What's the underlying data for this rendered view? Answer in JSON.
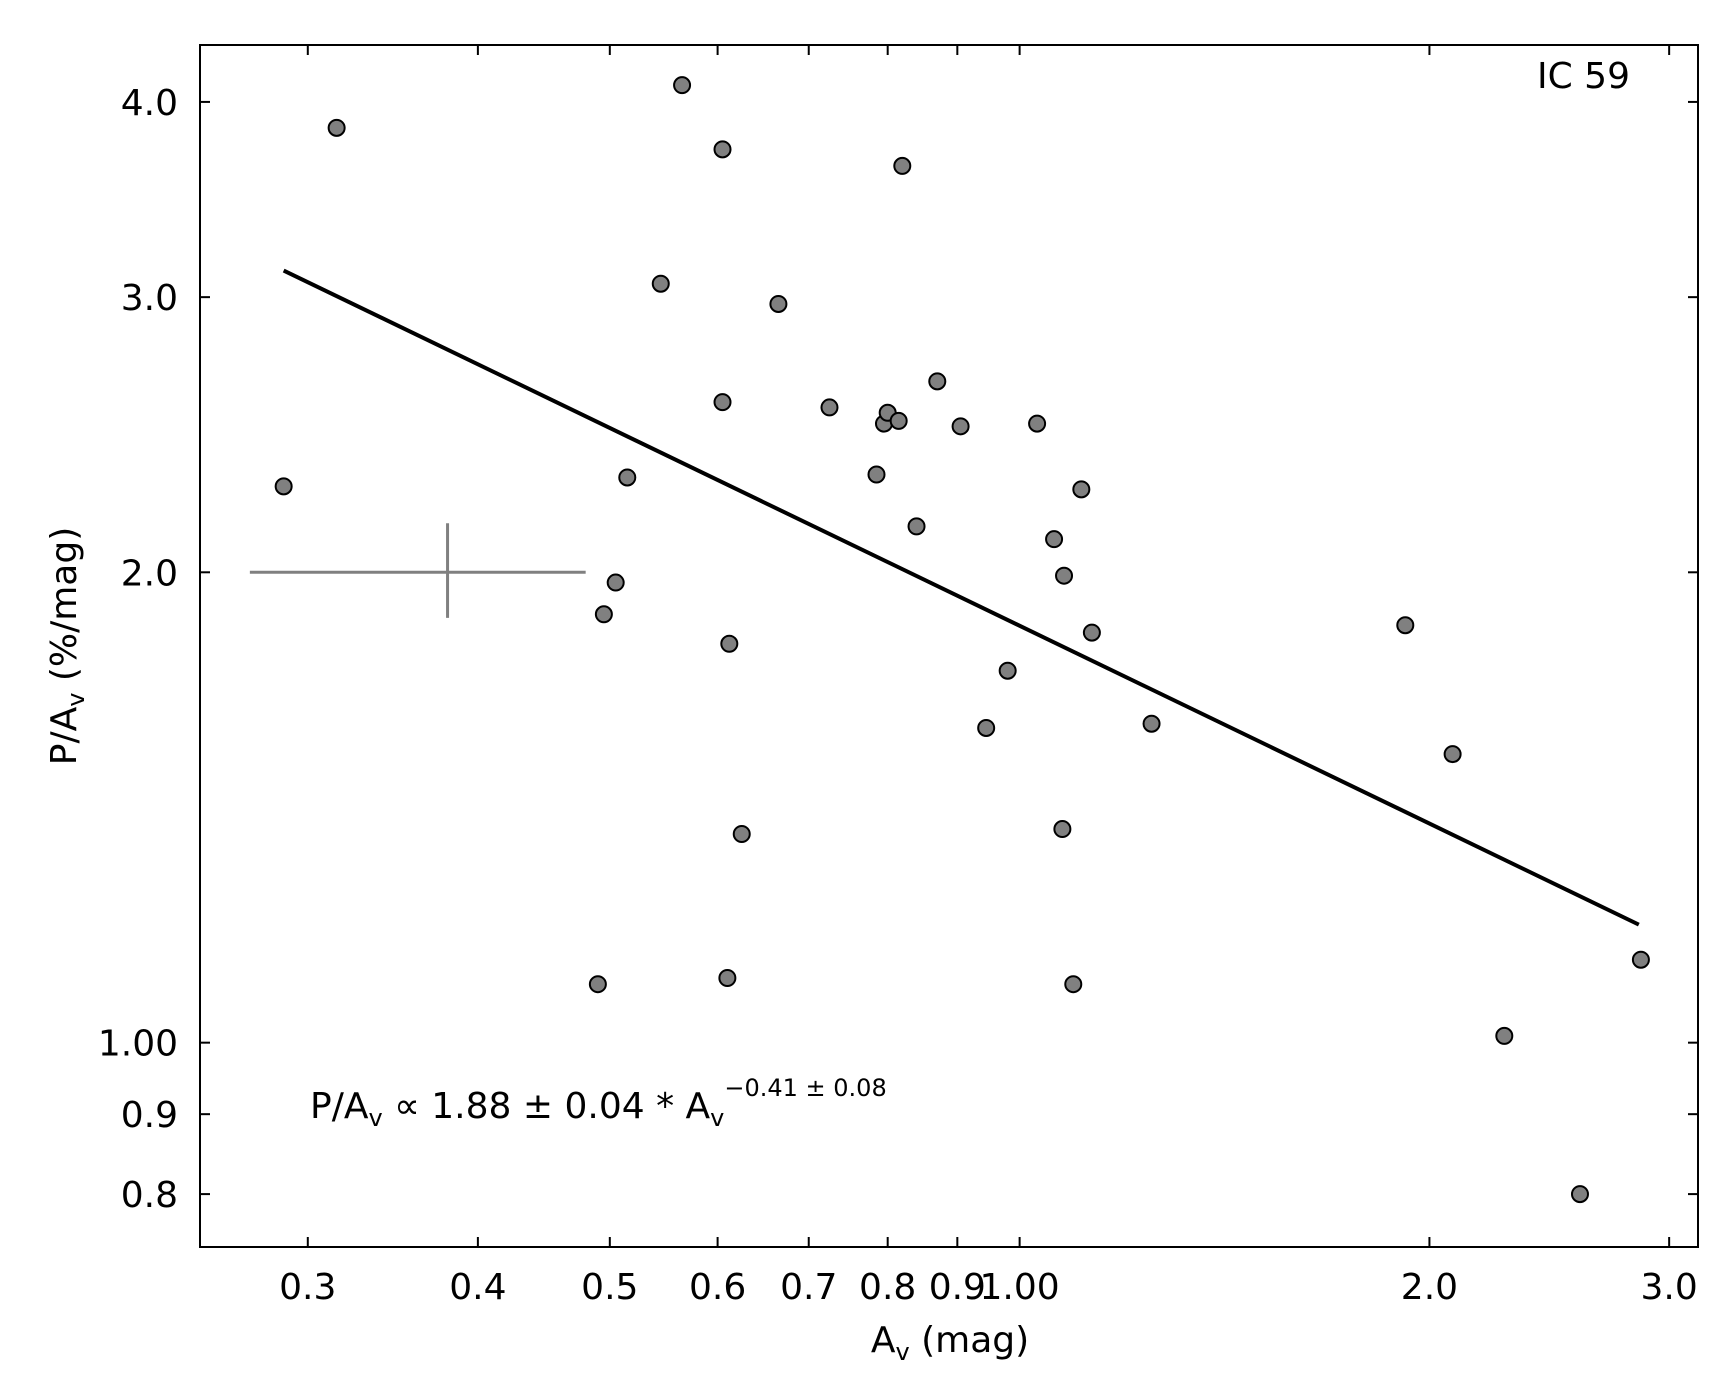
{
  "chart_data": {
    "type": "scatter",
    "panel_label": "IC 59",
    "xlabel": {
      "main": "A",
      "sub": "v",
      "rest": " (mag)"
    },
    "ylabel": {
      "main": "P/A",
      "sub": "v",
      "rest": " (%/mag)"
    },
    "x_scale": "log",
    "y_scale": "log",
    "xlim": [
      0.25,
      3.15
    ],
    "ylim": [
      0.74,
      4.35
    ],
    "x_ticks": [
      {
        "value": 0.3,
        "label": "0.3"
      },
      {
        "value": 0.4,
        "label": "0.4"
      },
      {
        "value": 0.5,
        "label": "0.5"
      },
      {
        "value": 0.6,
        "label": "0.6"
      },
      {
        "value": 0.7,
        "label": "0.7"
      },
      {
        "value": 0.8,
        "label": "0.8"
      },
      {
        "value": 0.9,
        "label": "0.9"
      },
      {
        "value": 1.0,
        "label": "1.00"
      },
      {
        "value": 2.0,
        "label": "2.0"
      },
      {
        "value": 3.0,
        "label": "3.0"
      }
    ],
    "y_ticks": [
      {
        "value": 0.8,
        "label": "0.8"
      },
      {
        "value": 0.9,
        "label": "0.9"
      },
      {
        "value": 1.0,
        "label": "1.00"
      },
      {
        "value": 2.0,
        "label": "2.0"
      },
      {
        "value": 3.0,
        "label": "3.0"
      },
      {
        "value": 4.0,
        "label": "4.0"
      }
    ],
    "points": [
      {
        "x": 0.288,
        "y": 2.27
      },
      {
        "x": 0.315,
        "y": 3.85
      },
      {
        "x": 0.49,
        "y": 1.09
      },
      {
        "x": 0.495,
        "y": 1.88
      },
      {
        "x": 0.505,
        "y": 1.97
      },
      {
        "x": 0.515,
        "y": 2.3
      },
      {
        "x": 0.545,
        "y": 3.06
      },
      {
        "x": 0.565,
        "y": 4.1
      },
      {
        "x": 0.605,
        "y": 3.73
      },
      {
        "x": 0.605,
        "y": 2.57
      },
      {
        "x": 0.61,
        "y": 1.1
      },
      {
        "x": 0.612,
        "y": 1.8
      },
      {
        "x": 0.625,
        "y": 1.36
      },
      {
        "x": 0.665,
        "y": 2.97
      },
      {
        "x": 0.725,
        "y": 2.55
      },
      {
        "x": 0.785,
        "y": 2.31
      },
      {
        "x": 0.795,
        "y": 2.49
      },
      {
        "x": 0.8,
        "y": 2.53
      },
      {
        "x": 0.815,
        "y": 2.5
      },
      {
        "x": 0.82,
        "y": 3.64
      },
      {
        "x": 0.84,
        "y": 2.14
      },
      {
        "x": 0.87,
        "y": 2.65
      },
      {
        "x": 0.905,
        "y": 2.48
      },
      {
        "x": 0.945,
        "y": 1.59
      },
      {
        "x": 0.98,
        "y": 1.73
      },
      {
        "x": 1.03,
        "y": 2.49
      },
      {
        "x": 1.06,
        "y": 2.1
      },
      {
        "x": 1.075,
        "y": 1.37
      },
      {
        "x": 1.078,
        "y": 1.99
      },
      {
        "x": 1.095,
        "y": 1.09
      },
      {
        "x": 1.11,
        "y": 2.26
      },
      {
        "x": 1.13,
        "y": 1.83
      },
      {
        "x": 1.25,
        "y": 1.6
      },
      {
        "x": 1.92,
        "y": 1.85
      },
      {
        "x": 2.08,
        "y": 1.53
      },
      {
        "x": 2.27,
        "y": 1.01
      },
      {
        "x": 2.58,
        "y": 0.8
      },
      {
        "x": 2.86,
        "y": 1.13
      }
    ],
    "fit_line": {
      "x": [
        0.288,
        2.85
      ],
      "y": [
        3.12,
        1.19
      ]
    },
    "error_cross": {
      "x": 0.38,
      "y": 2.0,
      "x_range": [
        0.272,
        0.48
      ],
      "y_range": [
        1.87,
        2.15
      ]
    },
    "equation": {
      "lhs_main": "P/A",
      "lhs_sub": "v",
      "middle": " ∝ 1.88 ± 0.04 * A",
      "base_sub": "v",
      "exponent": "−0.41 ± 0.08"
    },
    "colors": {
      "point_fill": "#808080",
      "point_stroke": "#000000",
      "fit_line": "#000000",
      "error_cross": "#808080",
      "axes": "#000000"
    }
  }
}
